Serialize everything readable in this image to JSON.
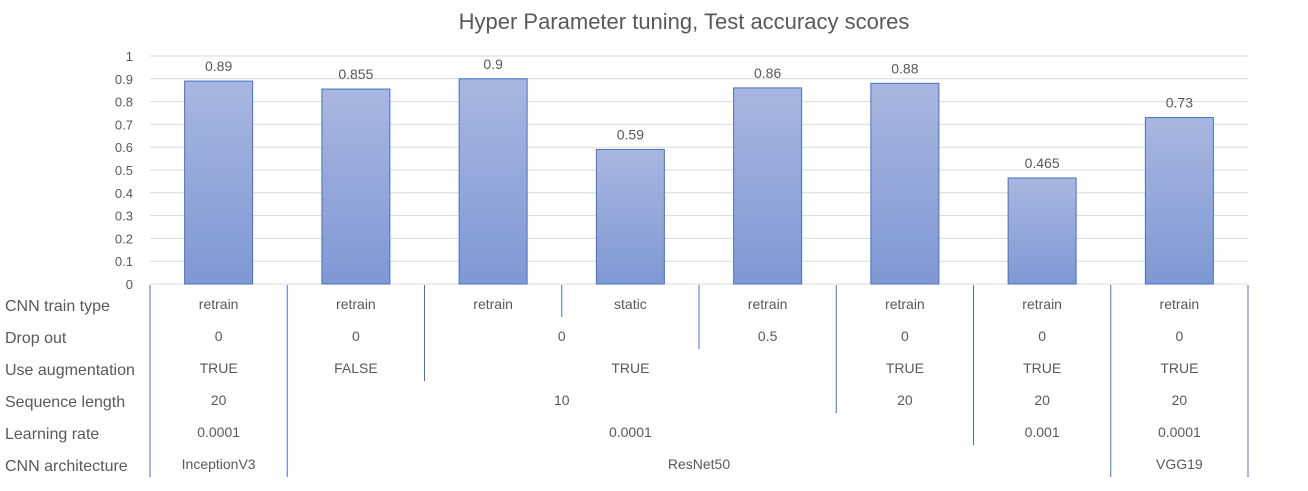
{
  "chart_data": {
    "type": "bar",
    "title": "Hyper Parameter tuning, Test accuracy scores",
    "xlabel": "",
    "ylabel": "",
    "ylim": [
      0,
      1
    ],
    "yticks": [
      "0",
      "0.1",
      "0.2",
      "0.3",
      "0.4",
      "0.5",
      "0.6",
      "0.7",
      "0.8",
      "0.9",
      "1"
    ],
    "grid": true,
    "values": [
      0.89,
      0.855,
      0.9,
      0.59,
      0.86,
      0.88,
      0.465,
      0.73
    ],
    "data_labels": [
      "0.89",
      "0.855",
      "0.9",
      "0.59",
      "0.86",
      "0.88",
      "0.465",
      "0.73"
    ],
    "bar_color_top": "#a9b6e0",
    "bar_color_bottom": "#7f98d4",
    "bar_border": "#4472c4",
    "table": {
      "rows": [
        {
          "label": "CNN train type",
          "cells": [
            {
              "text": "retrain",
              "span": 1
            },
            {
              "text": "retrain",
              "span": 1
            },
            {
              "text": "retrain",
              "span": 1
            },
            {
              "text": "static",
              "span": 1
            },
            {
              "text": "retrain",
              "span": 1
            },
            {
              "text": "retrain",
              "span": 1
            },
            {
              "text": "retrain",
              "span": 1
            },
            {
              "text": "retrain",
              "span": 1
            }
          ]
        },
        {
          "label": "Drop out",
          "cells": [
            {
              "text": "0",
              "span": 1
            },
            {
              "text": "0",
              "span": 1
            },
            {
              "text": "0",
              "span": 2
            },
            {
              "text": "0.5",
              "span": 1
            },
            {
              "text": "0",
              "span": 1
            },
            {
              "text": "0",
              "span": 1
            },
            {
              "text": "0",
              "span": 1
            }
          ]
        },
        {
          "label": "Use augmentation",
          "cells": [
            {
              "text": "TRUE",
              "span": 1
            },
            {
              "text": "FALSE",
              "span": 1
            },
            {
              "text": "TRUE",
              "span": 3
            },
            {
              "text": "TRUE",
              "span": 1
            },
            {
              "text": "TRUE",
              "span": 1
            },
            {
              "text": "TRUE",
              "span": 1
            }
          ]
        },
        {
          "label": "Sequence length",
          "cells": [
            {
              "text": "20",
              "span": 1
            },
            {
              "text": "10",
              "span": 4
            },
            {
              "text": "20",
              "span": 1
            },
            {
              "text": "20",
              "span": 1
            },
            {
              "text": "20",
              "span": 1
            }
          ]
        },
        {
          "label": "Learning rate",
          "cells": [
            {
              "text": "0.0001",
              "span": 1
            },
            {
              "text": "0.0001",
              "span": 5
            },
            {
              "text": "0.001",
              "span": 1
            },
            {
              "text": "0.0001",
              "span": 1
            }
          ]
        },
        {
          "label": "CNN architecture",
          "cells": [
            {
              "text": "InceptionV3",
              "span": 1
            },
            {
              "text": "ResNet50",
              "span": 6
            },
            {
              "text": "VGG19",
              "span": 1
            }
          ]
        }
      ]
    }
  }
}
